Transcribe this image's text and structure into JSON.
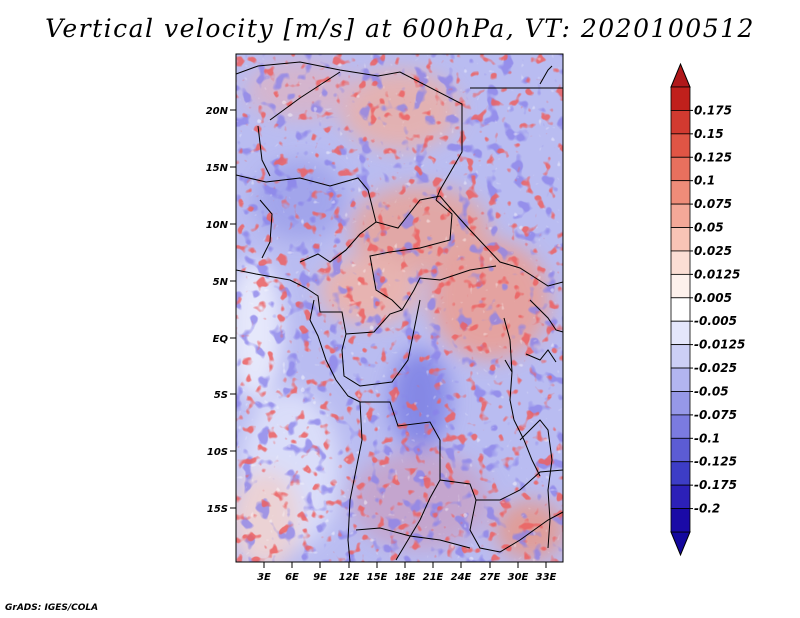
{
  "title": "Vertical velocity [m/s] at 600hPa, VT: 2020100512",
  "footer": "GrADS: IGES/COLA",
  "map": {
    "lat_labels": [
      "20N",
      "15N",
      "10N",
      "5N",
      "EQ",
      "5S",
      "10S",
      "15S"
    ],
    "lon_labels": [
      "3E",
      "6E",
      "9E",
      "12E",
      "15E",
      "18E",
      "21E",
      "24E",
      "27E",
      "30E",
      "33E"
    ]
  },
  "colorbar": {
    "labels": [
      "0.175",
      "0.15",
      "0.125",
      "0.1",
      "0.075",
      "0.05",
      "0.025",
      "0.0125",
      "0.005",
      "-0.005",
      "-0.0125",
      "-0.025",
      "-0.05",
      "-0.075",
      "-0.1",
      "-0.125",
      "-0.175",
      "-0.2"
    ],
    "colors": [
      "#c0201c",
      "#d23a30",
      "#e05545",
      "#e8705e",
      "#ef8c79",
      "#f4a898",
      "#f8c4b6",
      "#fbded4",
      "#fdf1ec",
      "#ffffff",
      "#e4e6fb",
      "#cccff6",
      "#b2b5f0",
      "#9698e8",
      "#7b7be0",
      "#5c5cd4",
      "#3d3dc6",
      "#2c20b8",
      "#1a0aa6"
    ],
    "top_cap_color": "#b0181a",
    "bottom_cap_color": "#14089e"
  }
}
